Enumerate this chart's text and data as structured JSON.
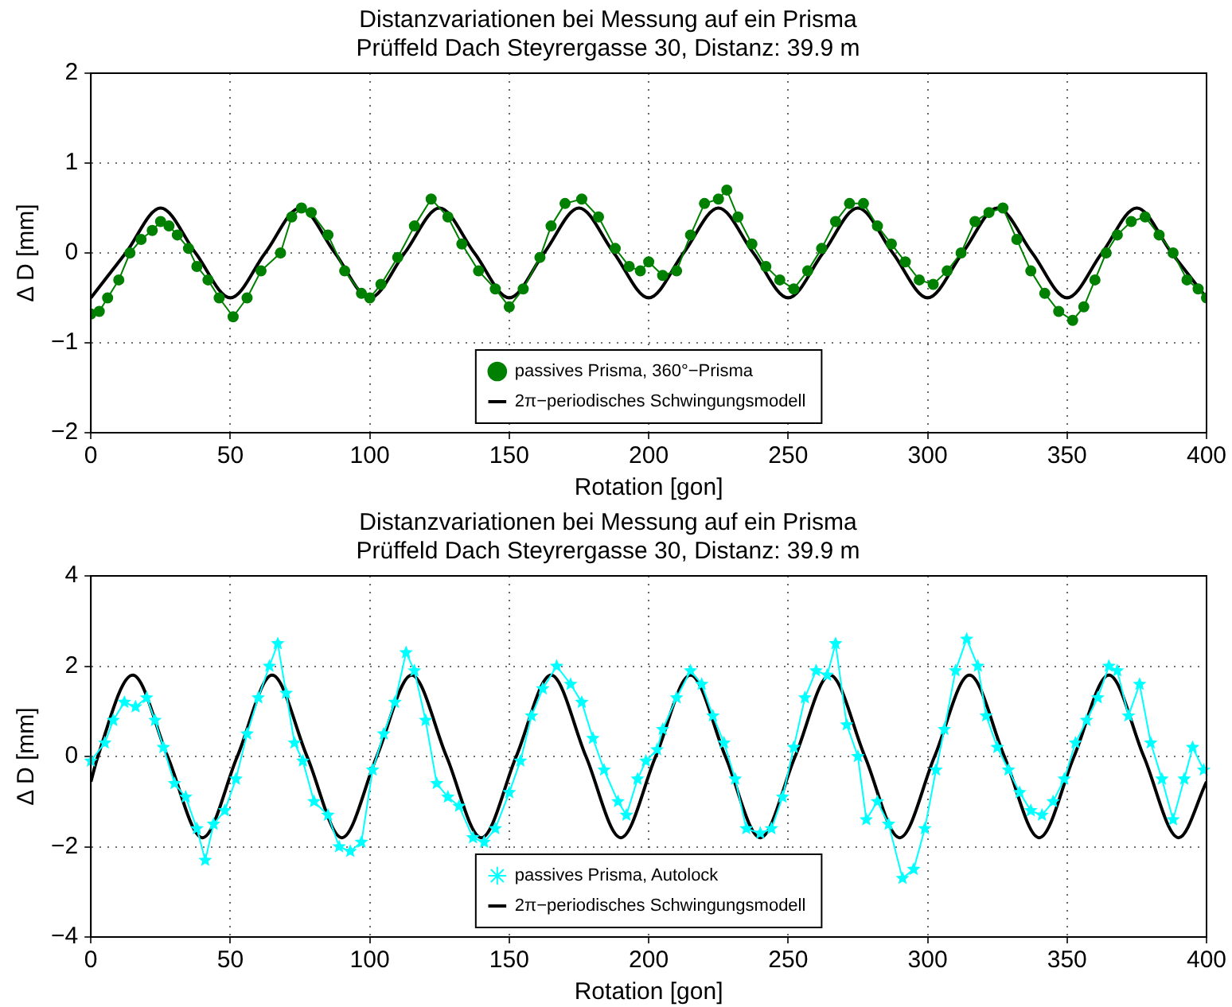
{
  "chart_data": [
    {
      "type": "line",
      "title": "Distanzvariationen bei Messung auf ein Prisma",
      "subtitle": "Prüffeld Dach Steyrergasse 30, Distanz: 39.9 m",
      "xlabel": "Rotation [gon]",
      "ylabel": "Δ D [mm]",
      "xlim": [
        0,
        400
      ],
      "xticks": [
        0,
        50,
        100,
        150,
        200,
        250,
        300,
        350,
        400
      ],
      "ylim": [
        -2,
        2
      ],
      "yticks": [
        -2,
        -1,
        0,
        1,
        2
      ],
      "grid": true,
      "legend": "bottom",
      "series": [
        {
          "name": "passives Prisma, 360°−Prisma",
          "color": "#008000",
          "marker": "circle",
          "x": [
            0,
            3,
            6,
            10,
            14,
            18,
            22,
            25,
            28,
            31,
            35,
            38,
            42,
            46,
            51,
            56,
            61,
            68,
            72,
            75.5,
            79,
            85,
            91,
            97,
            100,
            104,
            110,
            116,
            122,
            128,
            133,
            139,
            145,
            150,
            155,
            161,
            165,
            170,
            176,
            182,
            188,
            193,
            197,
            200,
            205,
            210,
            215,
            220,
            225,
            228,
            232,
            237,
            242,
            247,
            252,
            257,
            262,
            267,
            272,
            277,
            282,
            287,
            292,
            297,
            302,
            307,
            312,
            317,
            322,
            327,
            332,
            337,
            342,
            347,
            352,
            356,
            360,
            364,
            368,
            373,
            378,
            383,
            388,
            393,
            397,
            400
          ],
          "values": [
            -0.68,
            -0.65,
            -0.5,
            -0.3,
            0,
            0.15,
            0.25,
            0.35,
            0.3,
            0.2,
            0.05,
            -0.15,
            -0.3,
            -0.5,
            -0.71,
            -0.5,
            -0.2,
            0.0,
            0.4,
            0.5,
            0.45,
            0.2,
            -0.2,
            -0.45,
            -0.5,
            -0.35,
            -0.05,
            0.3,
            0.6,
            0.4,
            0.1,
            -0.2,
            -0.4,
            -0.6,
            -0.4,
            -0.05,
            0.3,
            0.55,
            0.6,
            0.4,
            0.05,
            -0.15,
            -0.2,
            -0.1,
            -0.25,
            -0.2,
            0.2,
            0.55,
            0.6,
            0.7,
            0.4,
            0.1,
            -0.15,
            -0.3,
            -0.4,
            -0.2,
            0.05,
            0.35,
            0.55,
            0.55,
            0.3,
            0.1,
            -0.1,
            -0.3,
            -0.35,
            -0.2,
            0.0,
            0.35,
            0.45,
            0.5,
            0.15,
            -0.2,
            -0.45,
            -0.65,
            -0.75,
            -0.6,
            -0.3,
            0.0,
            0.2,
            0.35,
            0.4,
            0.2,
            0.0,
            -0.3,
            -0.4,
            -0.5
          ]
        },
        {
          "name": "2π−periodisches Schwingungsmodell",
          "color": "#000000",
          "marker": "none",
          "x": [
            0,
            12.5,
            25,
            37.5,
            50,
            62.5,
            75,
            87.5,
            100,
            112.5,
            125,
            137.5,
            150,
            162.5,
            175,
            187.5,
            200,
            212.5,
            225,
            237.5,
            250,
            262.5,
            275,
            287.5,
            300,
            312.5,
            325,
            337.5,
            350,
            362.5,
            375,
            387.5,
            400
          ],
          "values": [
            -0.5,
            0,
            0.5,
            0,
            -0.5,
            0,
            0.5,
            0,
            -0.5,
            0,
            0.5,
            0,
            -0.5,
            0,
            0.5,
            0,
            -0.5,
            0,
            0.5,
            0,
            -0.5,
            0,
            0.5,
            0,
            -0.5,
            0,
            0.5,
            0,
            -0.5,
            0,
            0.5,
            0,
            -0.5
          ]
        }
      ]
    },
    {
      "type": "line",
      "title": "Distanzvariationen bei Messung auf ein Prisma",
      "subtitle": "Prüffeld Dach Steyrergasse 30, Distanz: 39.9 m",
      "xlabel": "Rotation [gon]",
      "ylabel": "Δ D [mm]",
      "xlim": [
        0,
        400
      ],
      "xticks": [
        0,
        50,
        100,
        150,
        200,
        250,
        300,
        350,
        400
      ],
      "ylim": [
        -4,
        4
      ],
      "yticks": [
        -4,
        -2,
        0,
        2,
        4
      ],
      "grid": true,
      "legend": "bottom",
      "series": [
        {
          "name": "passives Prisma, Autolock",
          "color": "#00ffff",
          "marker": "star",
          "x": [
            0,
            5,
            8,
            12,
            16,
            20,
            23,
            26,
            30,
            34,
            38,
            41,
            44,
            48,
            52,
            56,
            60,
            64,
            67,
            70,
            73,
            76,
            80,
            85,
            89,
            93,
            97,
            101,
            105,
            109,
            113,
            116,
            120,
            124,
            128,
            132,
            137,
            141,
            145,
            150,
            154,
            158,
            162,
            167,
            172,
            176,
            180,
            184,
            189,
            192,
            196,
            199,
            203,
            205,
            210,
            215,
            219,
            223,
            227,
            231,
            235,
            240,
            244,
            248,
            252,
            256,
            260,
            264,
            267,
            271,
            275,
            278,
            282,
            286,
            291,
            295,
            299,
            303,
            306,
            310,
            314,
            318,
            321,
            325,
            329,
            333,
            337,
            341,
            345,
            349,
            353,
            357,
            361,
            365,
            368,
            372,
            376,
            380,
            384,
            388,
            392,
            395,
            399
          ],
          "values": [
            -0.1,
            0.3,
            0.8,
            1.2,
            1.1,
            1.3,
            0.8,
            0.2,
            -0.6,
            -0.9,
            -1.6,
            -2.3,
            -1.5,
            -1.2,
            -0.5,
            0.5,
            1.3,
            2.0,
            2.5,
            1.4,
            0.3,
            -0.1,
            -1.0,
            -1.3,
            -2.0,
            -2.1,
            -1.9,
            -0.3,
            0.5,
            1.2,
            2.3,
            1.9,
            0.8,
            -0.6,
            -0.9,
            -1.1,
            -1.8,
            -1.9,
            -1.6,
            -0.8,
            -0.1,
            0.9,
            1.5,
            2.0,
            1.6,
            1.2,
            0.4,
            -0.3,
            -1.0,
            -1.3,
            -0.5,
            -0.1,
            0.15,
            0.6,
            1.3,
            1.9,
            1.6,
            0.9,
            0.3,
            -0.5,
            -1.6,
            -1.7,
            -1.6,
            -0.9,
            0.2,
            1.3,
            1.9,
            1.8,
            2.5,
            0.7,
            0.0,
            -1.4,
            -1.0,
            -1.5,
            -2.7,
            -2.5,
            -1.6,
            -0.3,
            0.6,
            1.9,
            2.6,
            2.0,
            0.9,
            0.2,
            -0.3,
            -0.8,
            -1.2,
            -1.3,
            -1.0,
            -0.5,
            0.3,
            0.8,
            1.3,
            2.0,
            1.9,
            0.9,
            1.6,
            0.3,
            -0.5,
            -1.4,
            -0.5,
            0.2,
            -0.3
          ]
        },
        {
          "name": "2π−periodisches Schwingungsmodell",
          "color": "#000000",
          "marker": "none",
          "x": [
            0,
            2.5,
            15,
            27.5,
            40,
            52.5,
            65,
            77.5,
            90,
            102.5,
            115,
            127.5,
            140,
            152.5,
            165,
            177.5,
            190,
            202.5,
            215,
            227.5,
            240,
            252.5,
            265,
            277.5,
            290,
            302.5,
            315,
            327.5,
            340,
            352.5,
            365,
            377.5,
            390,
            400
          ],
          "values": [
            -0.56,
            0,
            1.8,
            0,
            -1.8,
            0,
            1.8,
            0,
            -1.8,
            0,
            1.8,
            0,
            -1.8,
            0,
            1.8,
            0,
            -1.8,
            0,
            1.8,
            0,
            -1.8,
            0,
            1.8,
            0,
            -1.8,
            0,
            1.8,
            0,
            -1.8,
            0,
            1.8,
            0,
            -1.8,
            -0.56
          ]
        }
      ]
    }
  ]
}
